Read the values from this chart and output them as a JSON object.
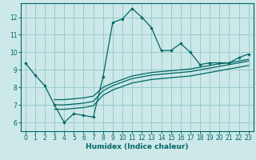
{
  "background_color": "#cce8e8",
  "grid_color": "#99cccc",
  "line_color": "#006666",
  "xlabel": "Humidex (Indice chaleur)",
  "ylim": [
    5.5,
    12.8
  ],
  "xlim": [
    -0.5,
    23.5
  ],
  "yticks": [
    6,
    7,
    8,
    9,
    10,
    11,
    12
  ],
  "xticks": [
    0,
    1,
    2,
    3,
    4,
    5,
    6,
    7,
    8,
    9,
    10,
    11,
    12,
    13,
    14,
    15,
    16,
    17,
    18,
    19,
    20,
    21,
    22,
    23
  ],
  "series1_x": [
    0,
    1,
    2,
    3,
    4,
    5,
    6,
    7,
    8,
    9,
    10,
    11,
    12,
    13,
    14,
    15,
    16,
    17,
    18,
    19,
    20,
    21,
    22,
    23
  ],
  "series1_y": [
    9.4,
    8.7,
    8.1,
    7.0,
    6.0,
    6.5,
    6.4,
    6.3,
    8.6,
    11.7,
    11.9,
    12.5,
    12.0,
    11.4,
    10.1,
    10.1,
    10.5,
    10.0,
    9.3,
    9.4,
    9.4,
    9.4,
    9.7,
    9.9
  ],
  "series2_x": [
    3,
    4,
    5,
    6,
    7,
    8,
    9,
    10,
    11,
    12,
    13,
    14,
    15,
    16,
    17,
    18,
    19,
    20,
    21,
    22,
    23
  ],
  "series2_y": [
    7.0,
    7.0,
    7.05,
    7.1,
    7.2,
    7.8,
    8.1,
    8.3,
    8.5,
    8.6,
    8.7,
    8.75,
    8.8,
    8.85,
    8.9,
    9.0,
    9.1,
    9.2,
    9.3,
    9.4,
    9.5
  ],
  "series3_x": [
    3,
    4,
    5,
    6,
    7,
    8,
    9,
    10,
    11,
    12,
    13,
    14,
    15,
    16,
    17,
    18,
    19,
    20,
    21,
    22,
    23
  ],
  "series3_y": [
    7.3,
    7.3,
    7.35,
    7.4,
    7.5,
    8.0,
    8.25,
    8.45,
    8.65,
    8.75,
    8.85,
    8.9,
    8.95,
    9.0,
    9.05,
    9.15,
    9.25,
    9.35,
    9.4,
    9.5,
    9.6
  ],
  "series4_x": [
    3,
    4,
    5,
    6,
    7,
    8,
    9,
    10,
    11,
    12,
    13,
    14,
    15,
    16,
    17,
    18,
    19,
    20,
    21,
    22,
    23
  ],
  "series4_y": [
    6.75,
    6.75,
    6.8,
    6.85,
    6.95,
    7.55,
    7.85,
    8.05,
    8.25,
    8.35,
    8.45,
    8.5,
    8.55,
    8.6,
    8.65,
    8.75,
    8.85,
    8.95,
    9.05,
    9.15,
    9.25
  ]
}
